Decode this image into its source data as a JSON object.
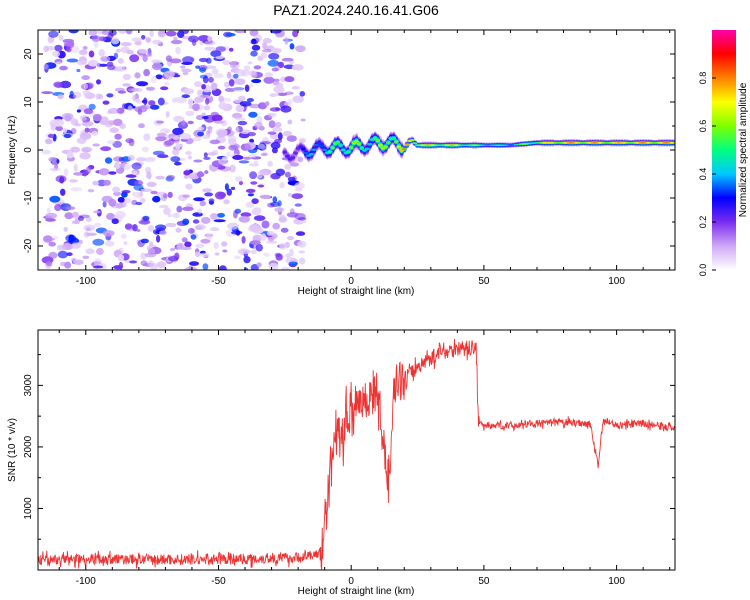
{
  "title": "PAZ1.2024.240.16.41.G06",
  "chart_data": [
    {
      "type": "heatmap",
      "xlabel": "Height of straight line (km)",
      "ylabel": "Frequency (Hz)",
      "xlim": [
        -118,
        122
      ],
      "ylim": [
        -25,
        25
      ],
      "xticks": [
        -100,
        -50,
        0,
        50,
        100
      ],
      "yticks": [
        -20,
        -10,
        0,
        10,
        20
      ],
      "colorbar": {
        "label": "Normalized spectral amplitude",
        "range": [
          0.0,
          1.0
        ],
        "ticks": [
          "0.0",
          "0.2",
          "0.4",
          "0.6",
          "0.8"
        ],
        "colors": [
          "#ffffff",
          "#cfa8f5",
          "#7a2df0",
          "#0000ff",
          "#00c8ff",
          "#00ff80",
          "#80ff00",
          "#ffff00",
          "#ff8000",
          "#ff0000",
          "#ff00aa"
        ]
      },
      "noise_region": {
        "x": [
          -115,
          -18
        ],
        "y": [
          -25,
          25
        ],
        "amplitude": [
          0.05,
          0.35
        ]
      },
      "signal_ridge": {
        "x": [
          -25,
          -20,
          -15,
          -10,
          -5,
          0,
          5,
          10,
          15,
          20,
          30,
          40,
          50,
          60,
          70,
          80,
          90,
          100,
          110,
          122
        ],
        "frequency": [
          -1.0,
          -0.5,
          0.0,
          0.5,
          0.5,
          0.5,
          1.0,
          1.5,
          1.5,
          1.0,
          1.0,
          1.0,
          1.0,
          1.0,
          1.5,
          1.5,
          1.5,
          1.5,
          1.5,
          1.5
        ],
        "peak_amplitude": [
          0.25,
          0.35,
          0.45,
          0.55,
          0.65,
          0.75,
          0.6,
          0.7,
          0.75,
          0.9,
          0.85,
          0.85,
          0.6,
          0.55,
          0.75,
          0.9,
          0.9,
          0.85,
          0.9,
          0.9
        ]
      },
      "grid": false
    },
    {
      "type": "line",
      "xlabel": "Height of straight line (km)",
      "ylabel": "SNR (10 * v/v)",
      "xlim": [
        -118,
        122
      ],
      "ylim": [
        0,
        3900
      ],
      "xticks": [
        -100,
        -50,
        0,
        50,
        100
      ],
      "yticks": [
        1000,
        2000,
        3000
      ],
      "series": [
        {
          "color": "#ee3333",
          "x": [
            -118,
            -100,
            -80,
            -60,
            -40,
            -20,
            -12,
            -10,
            -8,
            -6,
            -4,
            -2,
            0,
            2,
            5,
            10,
            14,
            16,
            20,
            25,
            30,
            35,
            40,
            45,
            47,
            48,
            50,
            60,
            70,
            80,
            90,
            93,
            95,
            100,
            110,
            122
          ],
          "y": [
            160,
            180,
            170,
            170,
            180,
            200,
            260,
            600,
            1600,
            2350,
            2100,
            2400,
            2600,
            2800,
            2750,
            2900,
            1400,
            3000,
            3100,
            3300,
            3450,
            3550,
            3600,
            3600,
            3650,
            2400,
            2350,
            2350,
            2380,
            2400,
            2380,
            1700,
            2450,
            2350,
            2380,
            2300
          ],
          "noise": [
            {
              "x": [
                -118,
                -12
              ],
              "amplitude": 110
            },
            {
              "x": [
                -12,
                20
              ],
              "amplitude": 420
            },
            {
              "x": [
                20,
                48
              ],
              "amplitude": 160
            },
            {
              "x": [
                48,
                122
              ],
              "amplitude": 75
            }
          ]
        }
      ],
      "grid": false
    }
  ]
}
